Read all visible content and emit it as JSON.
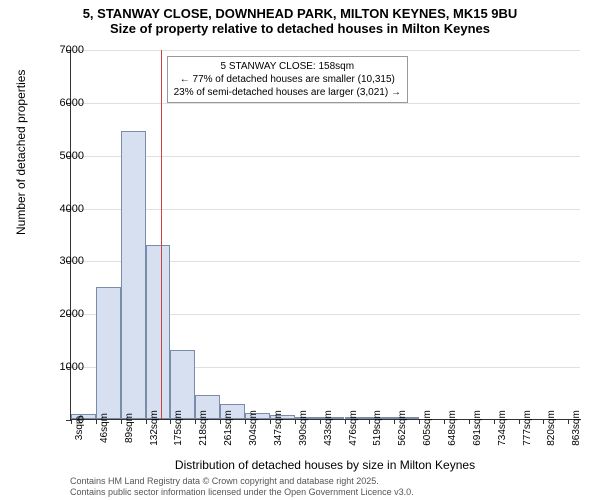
{
  "chart": {
    "type": "histogram",
    "title_line1": "5, STANWAY CLOSE, DOWNHEAD PARK, MILTON KEYNES, MK15 9BU",
    "title_line2": "Size of property relative to detached houses in Milton Keynes",
    "title_fontsize": 13,
    "ylabel": "Number of detached properties",
    "xlabel": "Distribution of detached houses by size in Milton Keynes",
    "label_fontsize": 12,
    "ylim_min": 0,
    "ylim_max": 7000,
    "ytick_step": 1000,
    "yticks": [
      0,
      1000,
      2000,
      3000,
      4000,
      5000,
      6000,
      7000
    ],
    "xlim_min": 3,
    "xlim_max": 885,
    "xtick_labels": [
      "3sqm",
      "46sqm",
      "89sqm",
      "132sqm",
      "175sqm",
      "218sqm",
      "261sqm",
      "304sqm",
      "347sqm",
      "390sqm",
      "433sqm",
      "476sqm",
      "519sqm",
      "562sqm",
      "605sqm",
      "648sqm",
      "691sqm",
      "734sqm",
      "777sqm",
      "820sqm",
      "863sqm"
    ],
    "xtick_values": [
      3,
      46,
      89,
      132,
      175,
      218,
      261,
      304,
      347,
      390,
      433,
      476,
      519,
      562,
      605,
      648,
      691,
      734,
      777,
      820,
      863
    ],
    "tick_fontsize": 11,
    "bar_color": "#d6e0f0",
    "bar_border_color": "#7a8ca8",
    "background_color": "#ffffff",
    "grid_color": "#e0e0e0",
    "marker_line_color": "#d04040",
    "marker_position": 158,
    "bin_width": 43,
    "bins": [
      {
        "start": 3,
        "value": 100
      },
      {
        "start": 46,
        "value": 2500
      },
      {
        "start": 89,
        "value": 5450
      },
      {
        "start": 132,
        "value": 3300
      },
      {
        "start": 175,
        "value": 1300
      },
      {
        "start": 218,
        "value": 450
      },
      {
        "start": 261,
        "value": 280
      },
      {
        "start": 304,
        "value": 120
      },
      {
        "start": 347,
        "value": 70
      },
      {
        "start": 390,
        "value": 30
      },
      {
        "start": 433,
        "value": 20
      },
      {
        "start": 476,
        "value": 10
      },
      {
        "start": 519,
        "value": 5
      },
      {
        "start": 562,
        "value": 5
      }
    ],
    "annotation": {
      "line1": "5 STANWAY CLOSE: 158sqm",
      "line2": "← 77% of detached houses are smaller (10,315)",
      "line3": "23% of semi-detached houses are larger (3,021) →",
      "border_color": "#999999",
      "fontsize": 10
    },
    "footer_line1": "Contains HM Land Registry data © Crown copyright and database right 2025.",
    "footer_line2": "Contains public sector information licensed under the Open Government Licence v3.0.",
    "footer_fontsize": 9
  }
}
